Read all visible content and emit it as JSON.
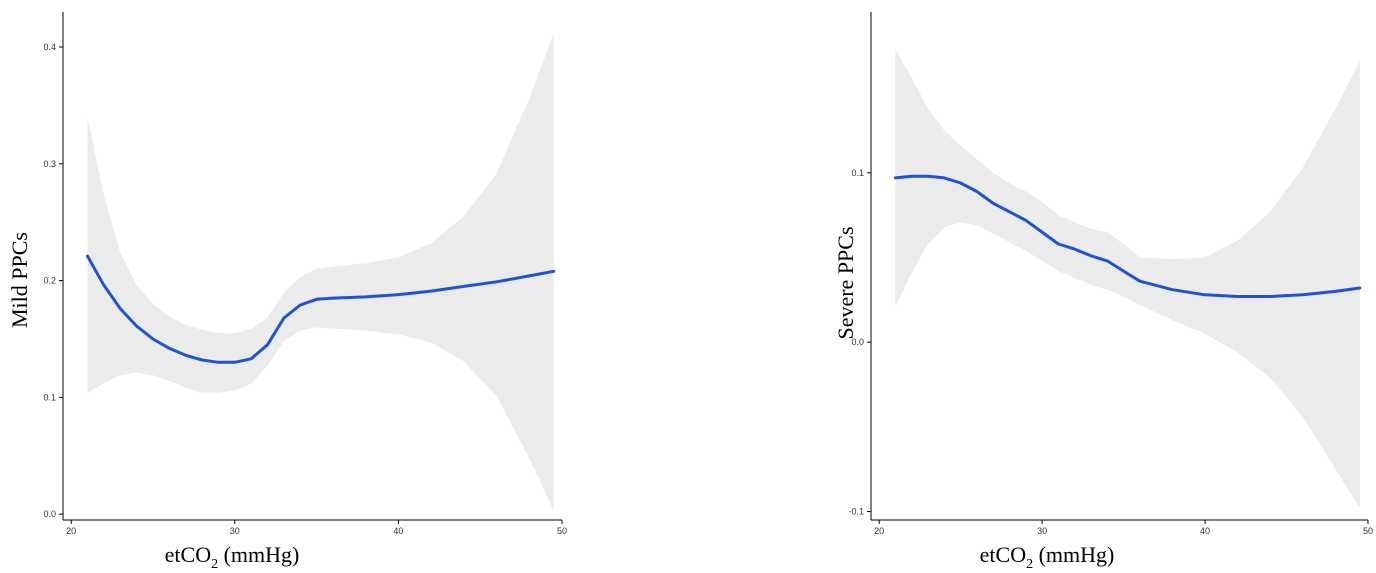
{
  "colors": {
    "line": "#1f53d6",
    "band": "#ebebeb",
    "axis": "#000000"
  },
  "chart_data": [
    {
      "type": "line",
      "title": "",
      "xlabel": {
        "main": "etCO",
        "sub": "2",
        "rest": " (mmHg)"
      },
      "ylabel": "Mild PPCs",
      "xlim": [
        19.5,
        50
      ],
      "ylim": [
        -0.005,
        0.43
      ],
      "x_ticks": [
        20,
        30,
        40,
        50
      ],
      "x_tick_labels": [
        "20",
        "30",
        "40",
        "50"
      ],
      "y_ticks": [
        0.0,
        0.1,
        0.2,
        0.3,
        0.4
      ],
      "y_tick_labels": [
        "0.0",
        "0.1",
        "0.2",
        "0.3",
        "0.4"
      ],
      "grid": false,
      "series": [
        {
          "x": [
            21,
            22,
            23,
            24,
            25,
            26,
            27,
            28,
            29,
            30,
            31,
            32,
            33,
            34,
            35,
            36,
            38,
            40,
            42,
            44,
            46,
            48,
            49.5
          ],
          "y": [
            0.221,
            0.196,
            0.176,
            0.161,
            0.15,
            0.142,
            0.136,
            0.132,
            0.13,
            0.13,
            0.133,
            0.145,
            0.168,
            0.179,
            0.184,
            0.185,
            0.186,
            0.188,
            0.191,
            0.195,
            0.199,
            0.204,
            0.208
          ],
          "lower": [
            0.104,
            0.112,
            0.119,
            0.121,
            0.119,
            0.114,
            0.108,
            0.104,
            0.104,
            0.106,
            0.112,
            0.127,
            0.148,
            0.157,
            0.16,
            0.159,
            0.157,
            0.154,
            0.147,
            0.131,
            0.101,
            0.048,
            0.003
          ],
          "upper": [
            0.34,
            0.273,
            0.224,
            0.196,
            0.18,
            0.169,
            0.162,
            0.158,
            0.155,
            0.155,
            0.159,
            0.168,
            0.19,
            0.203,
            0.21,
            0.212,
            0.215,
            0.22,
            0.232,
            0.255,
            0.292,
            0.356,
            0.412
          ]
        }
      ]
    },
    {
      "type": "line",
      "title": "",
      "xlabel": {
        "main": "etCO",
        "sub": "2",
        "rest": " (mmHg)"
      },
      "ylabel": "Severe  PPCs",
      "xlim": [
        19.5,
        50
      ],
      "ylim": [
        -0.105,
        0.195
      ],
      "x_ticks": [
        20,
        30,
        40,
        50
      ],
      "x_tick_labels": [
        "20",
        "30",
        "40",
        "50"
      ],
      "y_ticks": [
        -0.1,
        0.0,
        0.1
      ],
      "y_tick_labels": [
        "-0.1",
        "0.0",
        "0.1"
      ],
      "grid": false,
      "series": [
        {
          "x": [
            21,
            22,
            23,
            24,
            25,
            26,
            27,
            28,
            29,
            30,
            31,
            32,
            33,
            34,
            35,
            36,
            38,
            40,
            42,
            44,
            46,
            48,
            49.5
          ],
          "y": [
            0.097,
            0.098,
            0.098,
            0.097,
            0.094,
            0.089,
            0.082,
            0.077,
            0.072,
            0.065,
            0.058,
            0.055,
            0.051,
            0.048,
            0.042,
            0.036,
            0.031,
            0.028,
            0.027,
            0.027,
            0.028,
            0.03,
            0.032
          ],
          "lower": [
            0.021,
            0.041,
            0.058,
            0.068,
            0.071,
            0.069,
            0.064,
            0.059,
            0.054,
            0.048,
            0.042,
            0.038,
            0.034,
            0.031,
            0.027,
            0.022,
            0.013,
            0.005,
            -0.006,
            -0.021,
            -0.044,
            -0.075,
            -0.098
          ],
          "upper": [
            0.173,
            0.156,
            0.138,
            0.125,
            0.116,
            0.108,
            0.1,
            0.094,
            0.089,
            0.083,
            0.075,
            0.071,
            0.067,
            0.065,
            0.058,
            0.05,
            0.049,
            0.05,
            0.06,
            0.077,
            0.103,
            0.138,
            0.166
          ]
        }
      ]
    }
  ]
}
